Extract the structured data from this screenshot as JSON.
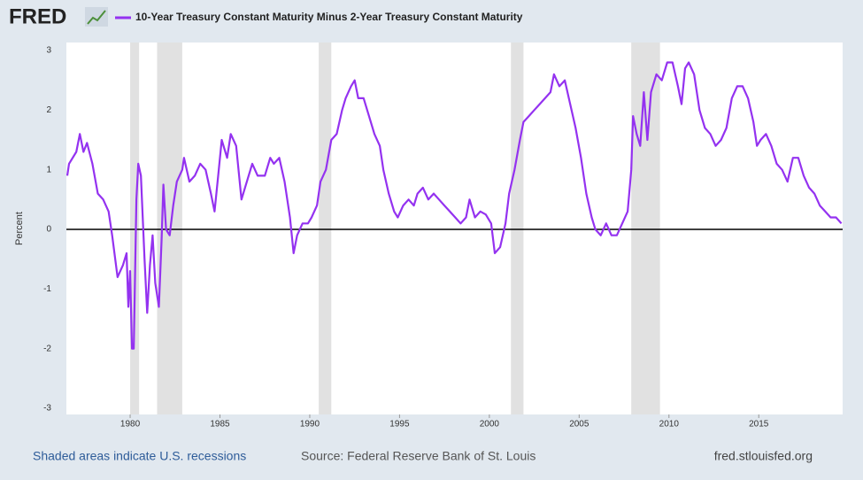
{
  "chart_data": {
    "type": "line",
    "logo": "FRED",
    "ylabel": "Percent",
    "footer_left": "Shaded areas indicate U.S. recessions",
    "footer_source": "Source: Federal Reserve Bank of St. Louis",
    "footer_right": "fred.stlouisfed.org",
    "xlim": [
      1976.45,
      2019.67
    ],
    "xticks": [
      1980,
      1985,
      1990,
      1995,
      2000,
      2005,
      2010,
      2015
    ],
    "ylim": [
      -3,
      3
    ],
    "yticks": [
      3,
      2,
      1,
      0,
      -1,
      -2,
      -3
    ],
    "zero_line": true,
    "recession_color": "#e1e1e1",
    "recessions": [
      [
        1980.0,
        1980.5
      ],
      [
        1981.5,
        1982.9
      ],
      [
        1990.5,
        1991.2
      ],
      [
        2001.2,
        2001.9
      ],
      [
        2007.9,
        2009.5
      ]
    ],
    "x": [
      1976.5,
      1976.6,
      1977.0,
      1977.2,
      1977.4,
      1977.6,
      1977.9,
      1978.2,
      1978.5,
      1978.8,
      1979.0,
      1979.3,
      1979.6,
      1979.8,
      1979.9,
      1980.0,
      1980.1,
      1980.2,
      1980.35,
      1980.45,
      1980.6,
      1980.8,
      1980.95,
      1981.1,
      1981.25,
      1981.4,
      1981.6,
      1981.75,
      1981.85,
      1982.0,
      1982.2,
      1982.4,
      1982.6,
      1982.9,
      1983.0,
      1983.3,
      1983.6,
      1983.9,
      1984.2,
      1984.5,
      1984.7,
      1984.9,
      1985.1,
      1985.4,
      1985.6,
      1985.9,
      1986.2,
      1986.5,
      1986.8,
      1987.1,
      1987.5,
      1987.8,
      1988.0,
      1988.3,
      1988.6,
      1988.9,
      1989.1,
      1989.3,
      1989.6,
      1989.9,
      1990.1,
      1990.4,
      1990.6,
      1990.9,
      1991.2,
      1991.5,
      1991.8,
      1992.0,
      1992.3,
      1992.5,
      1992.7,
      1993.0,
      1993.3,
      1993.6,
      1993.9,
      1994.1,
      1994.4,
      1994.7,
      1994.9,
      1995.2,
      1995.5,
      1995.8,
      1996.0,
      1996.3,
      1996.6,
      1996.9,
      1997.2,
      1997.5,
      1997.8,
      1998.1,
      1998.4,
      1998.7,
      1998.9,
      1999.2,
      1999.5,
      1999.8,
      2000.1,
      2000.3,
      2000.6,
      2000.9,
      2001.1,
      2001.4,
      2001.7,
      2001.9,
      2002.2,
      2002.5,
      2002.8,
      2003.1,
      2003.4,
      2003.6,
      2003.9,
      2004.2,
      2004.5,
      2004.8,
      2005.1,
      2005.4,
      2005.7,
      2005.9,
      2006.2,
      2006.5,
      2006.8,
      2007.1,
      2007.4,
      2007.7,
      2007.9,
      2008.0,
      2008.2,
      2008.4,
      2008.6,
      2008.8,
      2009.0,
      2009.3,
      2009.6,
      2009.9,
      2010.2,
      2010.5,
      2010.7,
      2010.9,
      2011.1,
      2011.4,
      2011.7,
      2012.0,
      2012.3,
      2012.6,
      2012.9,
      2013.2,
      2013.5,
      2013.8,
      2014.1,
      2014.4,
      2014.7,
      2014.9,
      2015.1,
      2015.4,
      2015.7,
      2016.0,
      2016.3,
      2016.6,
      2016.9,
      2017.2,
      2017.5,
      2017.8,
      2018.1,
      2018.4,
      2018.7,
      2019.0,
      2019.3,
      2019.6
    ],
    "series": [
      {
        "name": "10-Year Treasury Constant Maturity Minus 2-Year Treasury Constant Maturity",
        "color": "#9432f0",
        "values": [
          0.9,
          1.1,
          1.3,
          1.6,
          1.3,
          1.45,
          1.1,
          0.6,
          0.5,
          0.3,
          -0.1,
          -0.8,
          -0.6,
          -0.4,
          -1.3,
          -0.7,
          -2.0,
          -2.0,
          0.5,
          1.1,
          0.9,
          -0.5,
          -1.4,
          -0.6,
          -0.1,
          -0.9,
          -1.3,
          -0.2,
          0.75,
          0.0,
          -0.1,
          0.4,
          0.8,
          1.0,
          1.2,
          0.8,
          0.9,
          1.1,
          1.0,
          0.6,
          0.3,
          0.9,
          1.5,
          1.2,
          1.6,
          1.4,
          0.5,
          0.8,
          1.1,
          0.9,
          0.9,
          1.2,
          1.1,
          1.2,
          0.8,
          0.2,
          -0.4,
          -0.1,
          0.1,
          0.1,
          0.2,
          0.4,
          0.8,
          1.0,
          1.5,
          1.6,
          2.0,
          2.2,
          2.4,
          2.5,
          2.2,
          2.2,
          1.9,
          1.6,
          1.4,
          1.0,
          0.6,
          0.3,
          0.2,
          0.4,
          0.5,
          0.4,
          0.6,
          0.7,
          0.5,
          0.6,
          0.5,
          0.4,
          0.3,
          0.2,
          0.1,
          0.2,
          0.5,
          0.2,
          0.3,
          0.25,
          0.1,
          -0.4,
          -0.3,
          0.1,
          0.6,
          1.0,
          1.5,
          1.8,
          1.9,
          2.0,
          2.1,
          2.2,
          2.3,
          2.6,
          2.4,
          2.5,
          2.1,
          1.7,
          1.2,
          0.6,
          0.2,
          0.0,
          -0.1,
          0.1,
          -0.1,
          -0.1,
          0.1,
          0.3,
          1.0,
          1.9,
          1.6,
          1.4,
          2.3,
          1.5,
          2.3,
          2.6,
          2.5,
          2.8,
          2.8,
          2.4,
          2.1,
          2.7,
          2.8,
          2.6,
          2.0,
          1.7,
          1.6,
          1.4,
          1.5,
          1.7,
          2.2,
          2.4,
          2.4,
          2.2,
          1.8,
          1.4,
          1.5,
          1.6,
          1.4,
          1.1,
          1.0,
          0.8,
          1.2,
          1.2,
          0.9,
          0.7,
          0.6,
          0.4,
          0.3,
          0.2,
          0.2,
          0.1
        ]
      }
    ]
  }
}
